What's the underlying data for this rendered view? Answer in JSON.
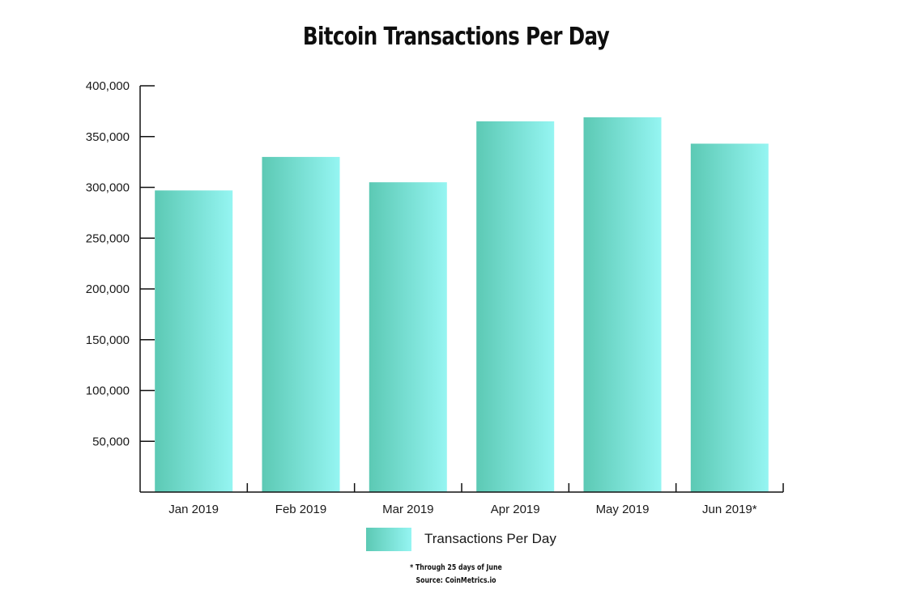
{
  "chart_data": {
    "type": "bar",
    "title": "Bitcoin Transactions Per Day",
    "categories": [
      "Jan 2019",
      "Feb 2019",
      "Mar 2019",
      "Apr 2019",
      "May 2019",
      "Jun 2019*"
    ],
    "series": [
      {
        "name": "Transactions Per Day",
        "values": [
          297000,
          330000,
          305000,
          365000,
          369000,
          343000
        ]
      }
    ],
    "y_ticks": [
      "50,000",
      "100,000",
      "150,000",
      "200,000",
      "250,000",
      "300,000",
      "350,000",
      "400,000"
    ],
    "y_tick_values": [
      50000,
      100000,
      150000,
      200000,
      250000,
      300000,
      350000,
      400000
    ],
    "ylim": [
      0,
      400000
    ],
    "xlabel": "",
    "ylabel": "",
    "grid": false,
    "legend_position": "bottom",
    "bar_gradient_start": "#5cc9b4",
    "bar_gradient_end": "#95f5f2",
    "axis_color": "#111111"
  },
  "legend": {
    "label": "Transactions Per Day"
  },
  "footnotes": {
    "note": "* Through 25 days of June",
    "source": "Source: CoinMetrics.io"
  }
}
